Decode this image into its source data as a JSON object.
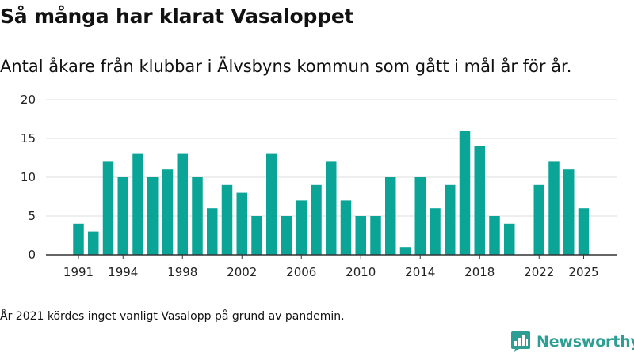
{
  "title": "Så många har klarat Vasaloppet",
  "subtitle": "Antal åkare från klubbar i Älvsbyns kommun som gått i mål år för år.",
  "footnote": "År 2021 kördes inget vanligt Vasalopp på grund av pandemin.",
  "brand": {
    "name": "Newsworthy",
    "logo_icon": "newsworthy-logo-icon",
    "color": "#2e9e95"
  },
  "chart_data": {
    "type": "bar",
    "title": "Så många har klarat Vasaloppet",
    "subtitle": "Antal åkare från klubbar i Älvsbyns kommun som gått i mål år för år.",
    "xlabel": "",
    "ylabel": "",
    "ylim": [
      0,
      20
    ],
    "yticks": [
      0,
      5,
      10,
      15,
      20
    ],
    "xticks": [
      1991,
      1994,
      1998,
      2002,
      2006,
      2010,
      2014,
      2018,
      2022,
      2025
    ],
    "grid": true,
    "bar_color": "#0aa597",
    "categories": [
      1991,
      1992,
      1993,
      1994,
      1995,
      1996,
      1997,
      1998,
      1999,
      2000,
      2001,
      2002,
      2003,
      2004,
      2005,
      2006,
      2007,
      2008,
      2009,
      2010,
      2011,
      2012,
      2013,
      2014,
      2015,
      2016,
      2017,
      2018,
      2019,
      2020,
      2021,
      2022,
      2023,
      2024,
      2025
    ],
    "values": [
      4,
      3,
      12,
      10,
      13,
      10,
      11,
      13,
      10,
      6,
      9,
      8,
      5,
      13,
      5,
      7,
      9,
      12,
      7,
      5,
      5,
      10,
      1,
      10,
      6,
      9,
      16,
      14,
      5,
      4,
      null,
      9,
      12,
      11,
      6
    ]
  }
}
